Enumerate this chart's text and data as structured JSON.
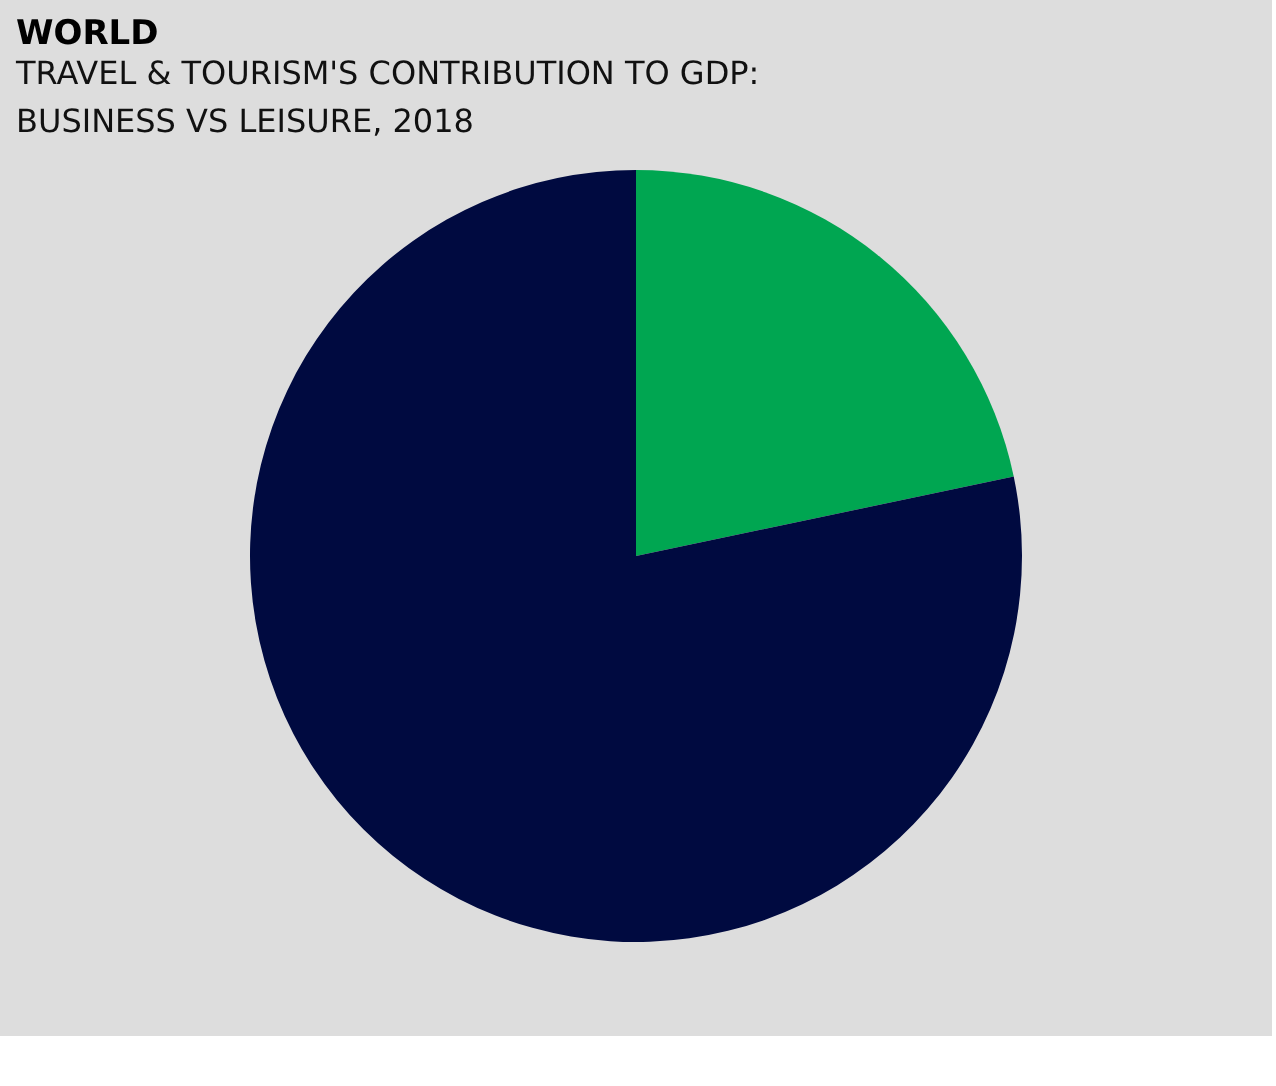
{
  "chart_data": {
    "type": "pie",
    "title": "WORLD",
    "subtitle": "TRAVEL & TOURISM'S CONTRIBUTION TO GDP:\nBUSINESS VS LEISURE, 2018",
    "categories": [
      null,
      null
    ],
    "values": [
      21.7,
      78.3
    ],
    "colors": [
      "#00a651",
      "#000a40"
    ],
    "legend": false
  }
}
